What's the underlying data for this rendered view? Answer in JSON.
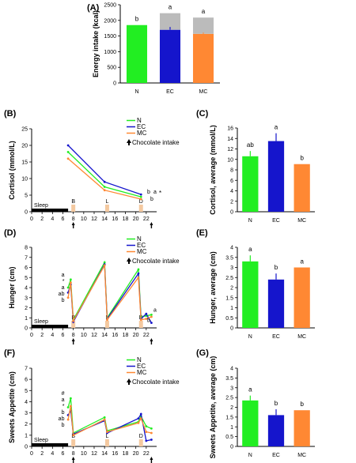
{
  "colors": {
    "N": "#22ee22",
    "EC": "#1515cc",
    "MC": "#ff8833",
    "extra": "#bbbbbb",
    "axis": "#000000",
    "meal": "#f4c9a0"
  },
  "chart_data": [
    {
      "id": "A",
      "panel_label": "(A)",
      "type": "bar",
      "stacked": true,
      "categories": [
        "N",
        "EC",
        "MC"
      ],
      "series": [
        {
          "values": [
            1850,
            1700,
            1570
          ]
        },
        {
          "values": [
            0,
            530,
            520
          ]
        }
      ],
      "errors": [
        0,
        90,
        40
      ],
      "letters": [
        "b",
        "a",
        "a"
      ],
      "ylabel": "Energy intake (kcal)",
      "ylim": [
        0,
        2500
      ],
      "yticks": [
        "0",
        "500",
        "1000",
        "1500",
        "2000",
        "2500"
      ]
    },
    {
      "id": "B",
      "panel_label": "(B)",
      "type": "line",
      "ylabel": "Cortisol (mmol/L)",
      "xlim": [
        0,
        24
      ],
      "ylim": [
        0,
        25
      ],
      "yticks": [
        "0",
        "5",
        "10",
        "15",
        "20",
        "25"
      ],
      "xticks": [
        "0",
        "2",
        "4",
        "6",
        "8",
        "10",
        "12",
        "14",
        "16",
        "18",
        "20",
        "22"
      ],
      "legend": [
        "N",
        "EC",
        "MC"
      ],
      "legend_note": "Chocolate intake",
      "sleep_label": "Sleep",
      "meal_labels": [
        "B",
        "L",
        "D"
      ],
      "series": [
        {
          "key": "N",
          "x": [
            7,
            14,
            21
          ],
          "y": [
            18,
            7.5,
            4.5
          ]
        },
        {
          "key": "EC",
          "x": [
            7,
            14,
            21
          ],
          "y": [
            20,
            9,
            5.2
          ]
        },
        {
          "key": "MC",
          "x": [
            7,
            14,
            21
          ],
          "y": [
            16,
            6.5,
            3.8
          ]
        }
      ],
      "end_letters": [
        "a",
        "b",
        "b"
      ],
      "sig": "*"
    },
    {
      "id": "C",
      "panel_label": "(C)",
      "type": "bar",
      "categories": [
        "N",
        "EC",
        "MC"
      ],
      "values": [
        10.6,
        13.5,
        9.1
      ],
      "errors": [
        1.0,
        1.5,
        0
      ],
      "letters": [
        "ab",
        "a",
        "b"
      ],
      "ylabel": "Cortisol, average (mmol/L)",
      "ylim": [
        0,
        16
      ],
      "yticks": [
        "0",
        "2",
        "4",
        "6",
        "8",
        "10",
        "12",
        "14",
        "16"
      ]
    },
    {
      "id": "D",
      "panel_label": "(D)",
      "type": "line",
      "ylabel": "Hunger (cm)",
      "xlim": [
        0,
        24
      ],
      "ylim": [
        0,
        8
      ],
      "yticks": [
        "0",
        "1",
        "2",
        "3",
        "4",
        "5",
        "6",
        "7",
        "8"
      ],
      "xticks": [
        "0",
        "2",
        "4",
        "6",
        "8",
        "10",
        "12",
        "14",
        "16",
        "18",
        "20",
        "22"
      ],
      "legend": [
        "N",
        "EC",
        "MC"
      ],
      "legend_note": "Chocolate intake",
      "sleep_label": "Sleep",
      "meal_labels": [
        "B",
        "L",
        "D"
      ],
      "series": [
        {
          "key": "N",
          "x": [
            7,
            7.5,
            8,
            14,
            14.5,
            20.5,
            21,
            22,
            23
          ],
          "y": [
            4,
            4.8,
            0.8,
            6.5,
            1.0,
            5.8,
            1.1,
            1.2,
            1.3
          ]
        },
        {
          "key": "EC",
          "x": [
            7,
            7.5,
            8,
            14,
            14.5,
            20.5,
            21,
            22,
            23
          ],
          "y": [
            3.5,
            4.3,
            0.6,
            6.3,
            0.9,
            5.4,
            0.9,
            1.4,
            0.5
          ]
        },
        {
          "key": "MC",
          "x": [
            7,
            7.5,
            8,
            14,
            14.5,
            20.5,
            21,
            22,
            23
          ],
          "y": [
            3.0,
            4.5,
            0.7,
            6.2,
            0.8,
            5.0,
            0.8,
            0.9,
            1.1
          ]
        }
      ],
      "annotations": [
        "a",
        "*",
        "a",
        "ab",
        "b"
      ],
      "end_letters": [
        "a",
        "b"
      ]
    },
    {
      "id": "E",
      "panel_label": "(E)",
      "type": "bar",
      "categories": [
        "N",
        "EC",
        "MC"
      ],
      "values": [
        3.3,
        2.4,
        3.0
      ],
      "errors": [
        0.3,
        0.3,
        0
      ],
      "letters": [
        "a",
        "b",
        "a"
      ],
      "ylabel": "Hunger, average (cm)",
      "ylim": [
        0,
        4
      ],
      "yticks": [
        "0",
        "0.5",
        "1",
        "1.5",
        "2",
        "2.5",
        "3",
        "3.5",
        "4"
      ]
    },
    {
      "id": "F",
      "panel_label": "(F)",
      "type": "line",
      "ylabel": "Sweets Appetite (cm)",
      "xlim": [
        0,
        24
      ],
      "ylim": [
        0,
        7
      ],
      "yticks": [
        "0",
        "1",
        "2",
        "3",
        "4",
        "5",
        "6",
        "7"
      ],
      "xticks": [
        "0",
        "2",
        "4",
        "6",
        "8",
        "10",
        "12",
        "14",
        "16",
        "18",
        "20",
        "22"
      ],
      "legend": [
        "N",
        "EC",
        "MC"
      ],
      "legend_note": "Chocolate intake",
      "sleep_label": "Sleep",
      "meal_labels": [
        "B",
        "L",
        "D"
      ],
      "series": [
        {
          "key": "N",
          "x": [
            7,
            7.5,
            8,
            14,
            14.5,
            20.5,
            21,
            22,
            23
          ],
          "y": [
            3.5,
            4.3,
            1.2,
            2.6,
            1.4,
            2.2,
            2.7,
            1.8,
            1.6
          ]
        },
        {
          "key": "EC",
          "x": [
            7,
            7.5,
            8,
            14,
            14.5,
            20.5,
            21,
            22,
            23
          ],
          "y": [
            2.8,
            3.2,
            1.1,
            2.3,
            1.2,
            2.5,
            2.9,
            0.5,
            0.6
          ]
        },
        {
          "key": "MC",
          "x": [
            7,
            7.5,
            8,
            14,
            14.5,
            20.5,
            21,
            22,
            23
          ],
          "y": [
            2.4,
            3.6,
            1.0,
            2.4,
            1.3,
            2.1,
            2.5,
            1.3,
            1.2
          ]
        }
      ],
      "annotations": [
        "#",
        "a",
        "*",
        "b",
        "ab",
        "b"
      ]
    },
    {
      "id": "G",
      "panel_label": "(G)",
      "type": "bar",
      "categories": [
        "N",
        "EC",
        "MC"
      ],
      "values": [
        2.35,
        1.6,
        1.85
      ],
      "errors": [
        0.25,
        0.3,
        0
      ],
      "letters": [
        "a",
        "b",
        "b"
      ],
      "ylabel": "Sweets Appetite, average (cm)",
      "ylim": [
        0,
        4
      ],
      "yticks": [
        "0",
        "0.5",
        "1",
        "1.5",
        "2",
        "2.5",
        "3",
        "3.5",
        "4"
      ]
    }
  ]
}
